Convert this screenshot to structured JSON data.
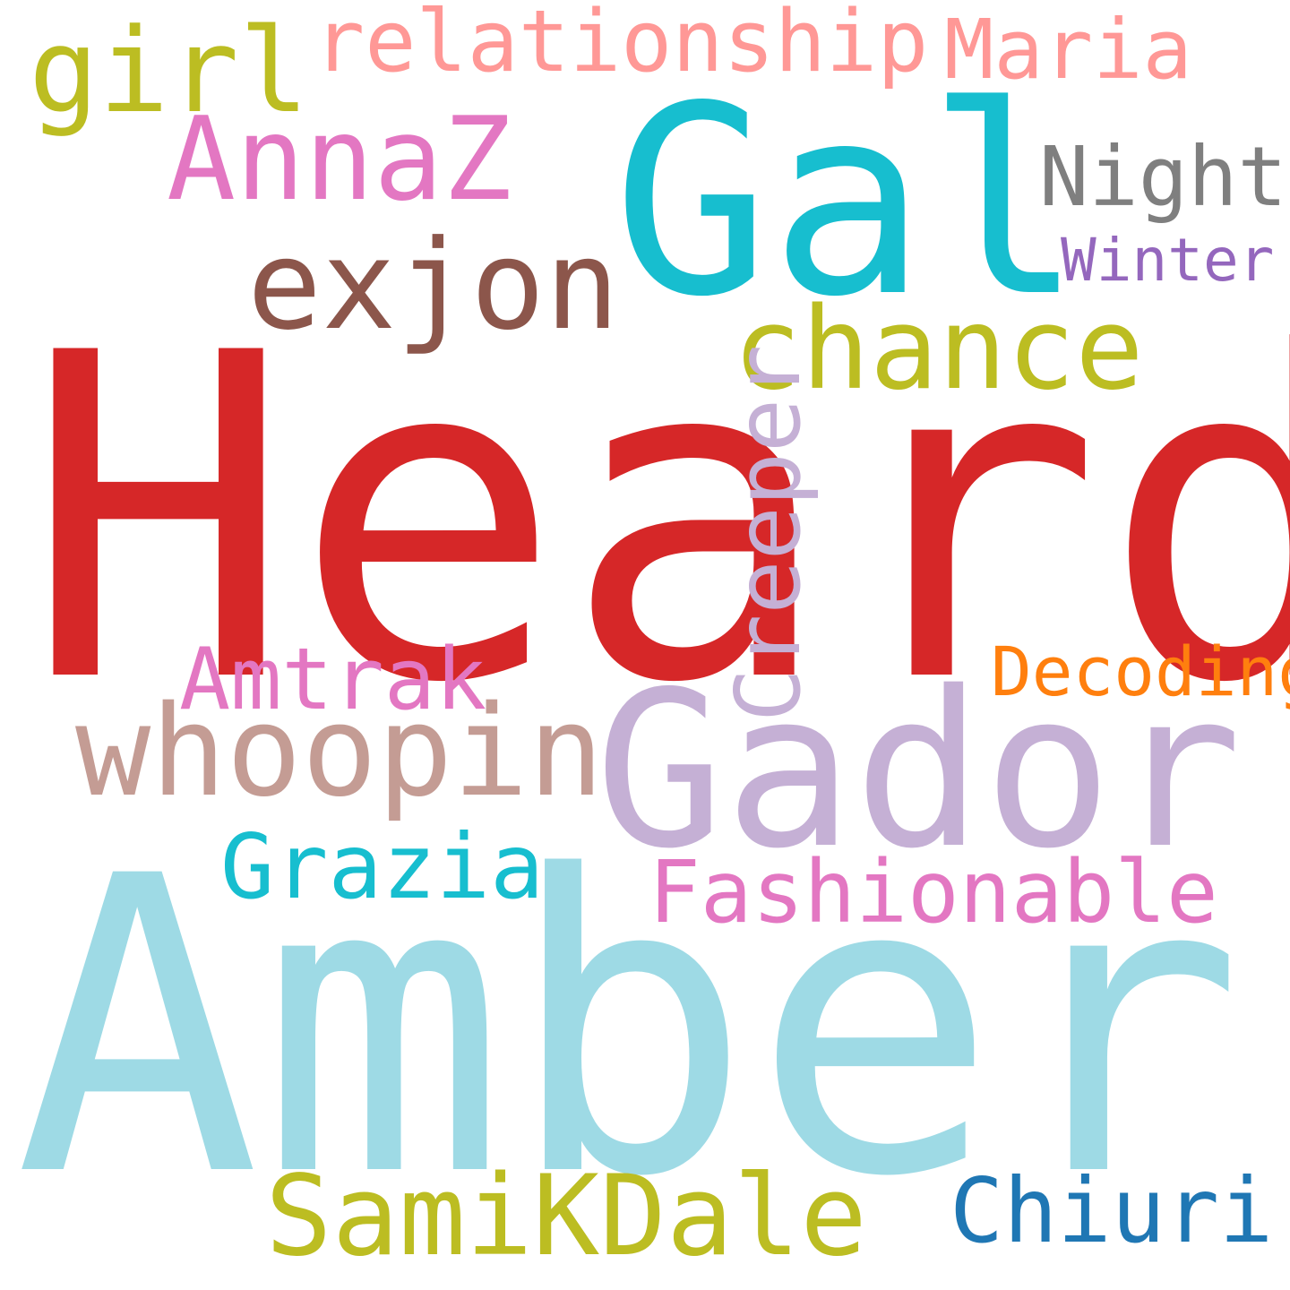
{
  "words": [
    {
      "id": "heard",
      "text": "Heard",
      "color": "#d62728"
    },
    {
      "id": "amber",
      "text": "Amber",
      "color": "#9edae5"
    },
    {
      "id": "gal",
      "text": "Gal",
      "color": "#17becf"
    },
    {
      "id": "gador",
      "text": "Gador",
      "color": "#c5b0d5"
    },
    {
      "id": "exjon",
      "text": "exjon",
      "color": "#8c564b"
    },
    {
      "id": "annaz",
      "text": "AnnaZ",
      "color": "#e377c2"
    },
    {
      "id": "girl",
      "text": "girl",
      "color": "#bcbd22"
    },
    {
      "id": "relationship",
      "text": "relationship",
      "color": "#ff9896"
    },
    {
      "id": "maria",
      "text": "Maria",
      "color": "#ff9896"
    },
    {
      "id": "night",
      "text": "Night",
      "color": "#7f7f7f"
    },
    {
      "id": "winter",
      "text": "Winter",
      "color": "#9467bd"
    },
    {
      "id": "chance",
      "text": "chance",
      "color": "#bcbd22"
    },
    {
      "id": "creeper",
      "text": "Creeper",
      "color": "#c5b0d5"
    },
    {
      "id": "amtrak",
      "text": "Amtrak",
      "color": "#e377c2"
    },
    {
      "id": "decoding",
      "text": "Decoding",
      "color": "#ff7f0e"
    },
    {
      "id": "whoopin",
      "text": "whoopin",
      "color": "#c49c94"
    },
    {
      "id": "grazia",
      "text": "Grazia",
      "color": "#17becf"
    },
    {
      "id": "fashionable",
      "text": "Fashionable",
      "color": "#e377c2"
    },
    {
      "id": "samikdale",
      "text": "SamiKDale",
      "color": "#bcbd22"
    },
    {
      "id": "chiuri",
      "text": "Chiuri",
      "color": "#1f77b4"
    }
  ]
}
